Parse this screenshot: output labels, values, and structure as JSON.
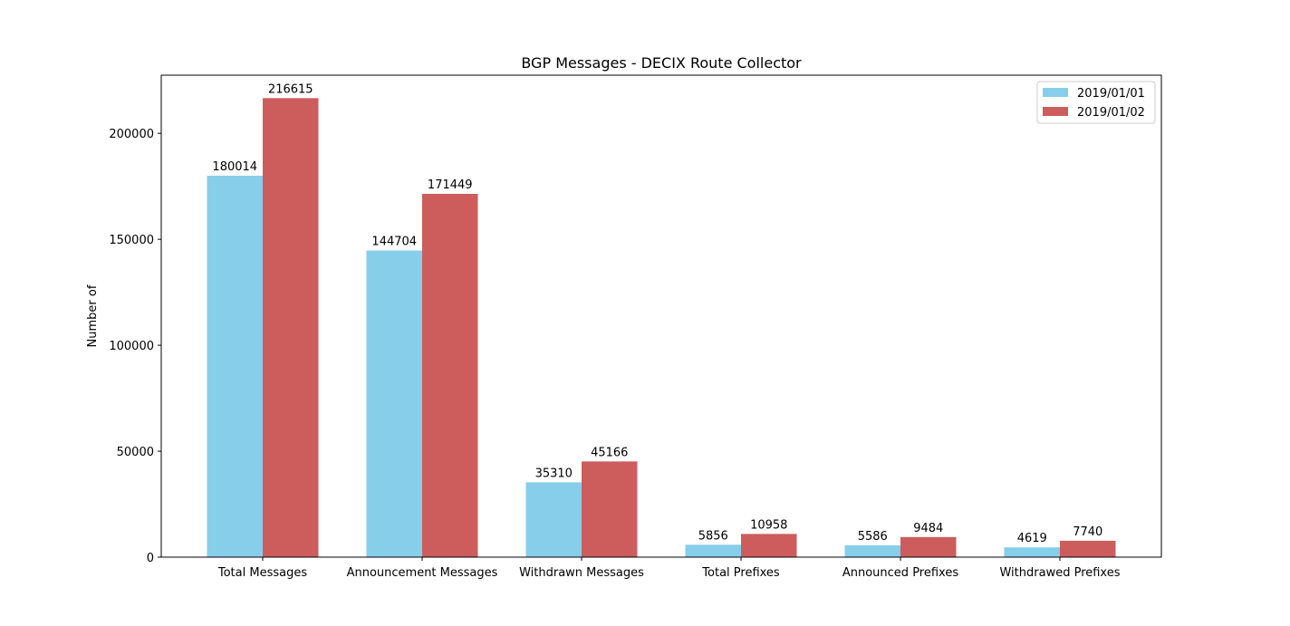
{
  "chart_data": {
    "type": "bar",
    "title": "BGP Messages - DECIX Route Collector",
    "xlabel": "",
    "ylabel": "Number of",
    "ylim": [
      0,
      227446
    ],
    "yticks": [
      0,
      50000,
      100000,
      150000,
      200000
    ],
    "legend_position": "top-right",
    "categories": [
      "Total Messages",
      "Announcement Messages",
      "Withdrawn Messages",
      "Total Prefixes",
      "Announced Prefixes",
      "Withdrawed Prefixes"
    ],
    "series": [
      {
        "name": "2019/01/01",
        "color": "#87ceeb",
        "values": [
          180014,
          144704,
          35310,
          5856,
          5586,
          4619
        ]
      },
      {
        "name": "2019/01/02",
        "color": "#cd5c5c",
        "values": [
          216615,
          171449,
          45166,
          10958,
          9484,
          7740
        ]
      }
    ]
  }
}
